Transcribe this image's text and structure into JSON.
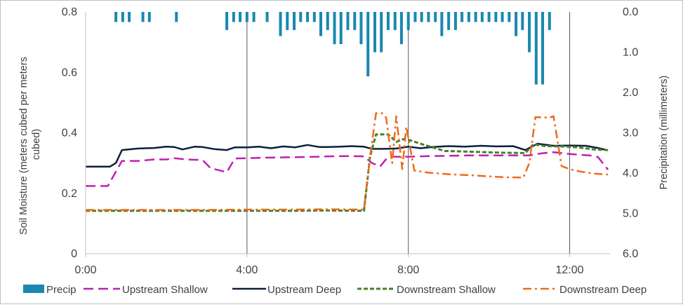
{
  "chart_data": {
    "type": "line",
    "title": "",
    "xlabel": "",
    "x_unit": "hours",
    "x_ticks": [
      "0:00",
      "4:00",
      "8:00",
      "12:00"
    ],
    "x_tick_values": [
      0,
      4,
      8,
      12
    ],
    "xlim": [
      0,
      13
    ],
    "ylabel_left": "Soil Moisture (meters cubed per meters cubed)",
    "ylabel_left_lines": [
      "Soil Moisture (meters cubed per meters",
      "cubed)"
    ],
    "ylim_left": [
      0,
      0.8
    ],
    "y_ticks_left": [
      "0",
      "0.2",
      "0.4",
      "0.6",
      "0.8"
    ],
    "y_tick_values_left": [
      0,
      0.2,
      0.4,
      0.6,
      0.8
    ],
    "ylabel_right": "Precipitation (millimeters)",
    "ylim_right": [
      0,
      6
    ],
    "right_axis_inverted": true,
    "y_ticks_right": [
      "0.0",
      "1.0",
      "2.0",
      "3.0",
      "4.0",
      "5.0",
      "6.0"
    ],
    "y_tick_values_right": [
      0,
      1,
      2,
      3,
      4,
      5,
      6
    ],
    "legend_position": "bottom",
    "precip": {
      "name": "Precip",
      "color": "#1a88b0",
      "bar_width_hours": 0.07,
      "times": [
        0.75,
        0.92,
        1.08,
        1.42,
        1.58,
        2.25,
        3.5,
        3.67,
        3.83,
        4.0,
        4.17,
        4.5,
        4.83,
        5.0,
        5.17,
        5.33,
        5.5,
        5.67,
        5.83,
        6.0,
        6.17,
        6.33,
        6.5,
        6.67,
        6.83,
        7.0,
        7.17,
        7.33,
        7.5,
        7.67,
        7.83,
        8.0,
        8.17,
        8.33,
        8.5,
        8.67,
        8.83,
        9.0,
        9.17,
        9.33,
        9.5,
        9.67,
        9.83,
        10.0,
        10.17,
        10.33,
        10.5,
        10.67,
        10.83,
        11.0,
        11.17,
        11.33,
        11.5
      ],
      "values": [
        0.25,
        0.25,
        0.25,
        0.25,
        0.25,
        0.25,
        0.45,
        0.25,
        0.25,
        0.25,
        0.25,
        0.25,
        0.6,
        0.45,
        0.45,
        0.25,
        0.25,
        0.25,
        0.6,
        0.45,
        0.8,
        0.8,
        0.45,
        0.45,
        0.8,
        1.6,
        1.0,
        1.0,
        0.45,
        0.45,
        0.8,
        0.45,
        0.25,
        0.25,
        0.25,
        0.25,
        0.6,
        0.45,
        0.45,
        0.25,
        0.25,
        0.25,
        0.25,
        0.25,
        0.25,
        0.25,
        0.25,
        0.6,
        0.45,
        1.0,
        1.8,
        1.8,
        0.45
      ]
    },
    "series": [
      {
        "name": "Upstream Shallow",
        "color": "#c21fb1",
        "dash": "long-dash",
        "x": [
          0,
          0.55,
          0.9,
          1.3,
          1.7,
          2.0,
          2.2,
          2.5,
          2.9,
          3.1,
          3.5,
          3.7,
          4.0,
          4.5,
          5.0,
          5.5,
          6.0,
          6.5,
          6.9,
          7.1,
          7.3,
          7.5,
          8.0,
          8.5,
          9.0,
          9.5,
          10.0,
          10.5,
          11.0,
          11.3,
          11.6,
          12.0,
          12.5,
          12.7,
          12.95
        ],
        "y": [
          0.224,
          0.224,
          0.307,
          0.307,
          0.312,
          0.312,
          0.316,
          0.312,
          0.31,
          0.283,
          0.27,
          0.315,
          0.316,
          0.318,
          0.319,
          0.32,
          0.322,
          0.323,
          0.322,
          0.3,
          0.289,
          0.321,
          0.321,
          0.323,
          0.324,
          0.325,
          0.325,
          0.325,
          0.325,
          0.332,
          0.336,
          0.33,
          0.325,
          0.32,
          0.278
        ]
      },
      {
        "name": "Upstream Deep",
        "color": "#0d1f3d",
        "dash": "solid",
        "x": [
          0,
          0.6,
          0.75,
          0.9,
          1.3,
          1.7,
          2.0,
          2.2,
          2.4,
          2.7,
          2.9,
          3.2,
          3.5,
          3.7,
          4.0,
          4.3,
          4.6,
          4.9,
          5.2,
          5.5,
          5.8,
          6.0,
          6.3,
          6.6,
          6.9,
          7.1,
          7.4,
          7.7,
          8.0,
          8.3,
          8.6,
          9.0,
          9.4,
          9.8,
          10.2,
          10.6,
          10.9,
          11.2,
          11.6,
          12.0,
          12.4,
          12.7,
          12.95
        ],
        "y": [
          0.288,
          0.288,
          0.3,
          0.343,
          0.348,
          0.35,
          0.354,
          0.353,
          0.345,
          0.354,
          0.353,
          0.346,
          0.343,
          0.352,
          0.352,
          0.354,
          0.349,
          0.355,
          0.352,
          0.36,
          0.353,
          0.353,
          0.354,
          0.356,
          0.354,
          0.347,
          0.347,
          0.348,
          0.354,
          0.349,
          0.353,
          0.356,
          0.354,
          0.357,
          0.355,
          0.356,
          0.343,
          0.364,
          0.357,
          0.358,
          0.357,
          0.35,
          0.342
        ]
      },
      {
        "name": "Downstream Shallow",
        "color": "#4a7f2a",
        "dash": "short-dash",
        "x": [
          0,
          1.0,
          2.0,
          3.0,
          4.0,
          5.0,
          6.0,
          6.9,
          7.05,
          7.2,
          7.5,
          7.7,
          7.9,
          8.05,
          8.4,
          8.9,
          9.4,
          9.9,
          10.4,
          10.9,
          11.1,
          11.4,
          11.8,
          12.2,
          12.6,
          12.95
        ],
        "y": [
          0.142,
          0.142,
          0.142,
          0.142,
          0.142,
          0.142,
          0.143,
          0.142,
          0.32,
          0.395,
          0.395,
          0.37,
          0.38,
          0.375,
          0.36,
          0.34,
          0.338,
          0.336,
          0.334,
          0.333,
          0.362,
          0.356,
          0.355,
          0.352,
          0.345,
          0.343
        ]
      },
      {
        "name": "Downstream Deep",
        "color": "#f06a1a",
        "dash": "dash-dot",
        "x": [
          0,
          1.0,
          2.0,
          3.0,
          4.0,
          5.0,
          6.0,
          6.9,
          7.05,
          7.2,
          7.35,
          7.45,
          7.6,
          7.7,
          7.85,
          7.95,
          8.15,
          8.5,
          9.0,
          9.5,
          10.0,
          10.4,
          10.85,
          11.0,
          11.15,
          11.5,
          11.6,
          11.8,
          12.0,
          12.3,
          12.6,
          12.95
        ],
        "y": [
          0.145,
          0.145,
          0.145,
          0.145,
          0.146,
          0.146,
          0.147,
          0.146,
          0.32,
          0.465,
          0.465,
          0.45,
          0.3,
          0.455,
          0.28,
          0.42,
          0.275,
          0.268,
          0.263,
          0.26,
          0.256,
          0.253,
          0.252,
          0.3,
          0.452,
          0.45,
          0.455,
          0.29,
          0.28,
          0.271,
          0.265,
          0.262
        ]
      }
    ],
    "legend": [
      "Precip",
      "Upstream Shallow",
      "Upstream Deep",
      "Downstream Shallow",
      "Downstream Deep"
    ]
  }
}
